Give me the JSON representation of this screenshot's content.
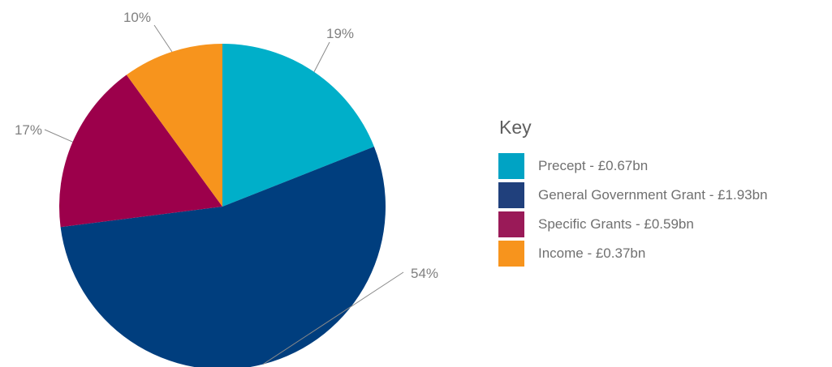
{
  "chart_data": {
    "type": "pie",
    "slices": [
      {
        "label": "Precept - £0.67bn",
        "value": 19,
        "percent_label": "19%",
        "color": "#00afc9"
      },
      {
        "label": "General Government Grant - £1.93bn",
        "value": 54,
        "percent_label": "54%",
        "color": "#003e7e"
      },
      {
        "label": "Specific Grants - £0.59bn",
        "value": 17,
        "percent_label": "17%",
        "color": "#9c004b"
      },
      {
        "label": "Income - £0.37bn",
        "value": 10,
        "percent_label": "10%",
        "color": "#f7941d"
      }
    ],
    "legend_title": "Key",
    "legend_placement": "right",
    "swatch_colors": [
      "#00a3c4",
      "#20407c",
      "#9a1a58",
      "#f7941d"
    ]
  }
}
